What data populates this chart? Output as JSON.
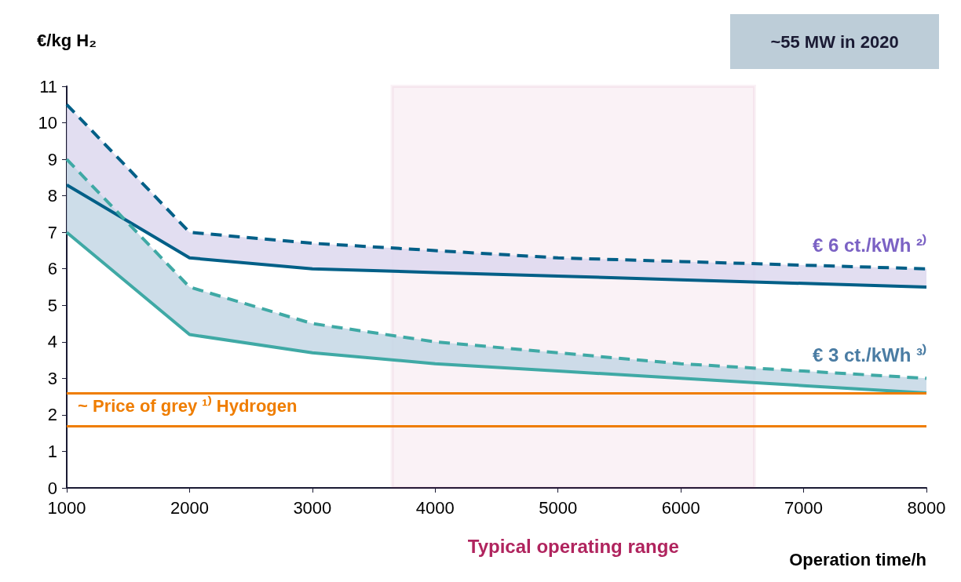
{
  "chart_data": {
    "type": "line",
    "ylabel": "€/kg H₂",
    "xlabel": "Operation time/h",
    "x": [
      1000,
      2000,
      3000,
      4000,
      5000,
      6000,
      7000,
      8000
    ],
    "series": [
      {
        "color": "#005f87",
        "line_style": "dashed",
        "values": [
          10.5,
          7.0,
          6.7,
          6.5,
          6.3,
          6.2,
          6.1,
          6.0
        ]
      },
      {
        "name": "€ 6 ct./kWh ²⁾",
        "color": "#005f87",
        "line_style": "solid",
        "values": [
          8.3,
          6.3,
          6.0,
          5.9,
          5.8,
          5.7,
          5.6,
          5.5
        ],
        "lower": [
          8.3,
          6.3,
          6.0,
          5.9,
          5.8,
          5.7,
          5.6,
          5.5
        ],
        "upper": [
          10.5,
          7.0,
          6.7,
          6.5,
          6.3,
          6.2,
          6.1,
          6.0
        ]
      },
      {
        "color": "#3fa9a5",
        "line_style": "dashed",
        "values": [
          9.0,
          5.5,
          4.5,
          4.0,
          3.7,
          3.4,
          3.2,
          3.0
        ]
      },
      {
        "name": "€ 3 ct./kWh ³⁾",
        "color": "#3fa9a5",
        "line_style": "solid",
        "values": [
          7.0,
          4.2,
          3.7,
          3.4,
          3.2,
          3.0,
          2.8,
          2.6
        ],
        "lower": [
          7.0,
          4.2,
          3.7,
          3.4,
          3.2,
          3.0,
          2.8,
          2.6
        ],
        "upper": [
          9.0,
          5.5,
          4.5,
          4.0,
          3.7,
          3.4,
          3.2,
          3.0
        ]
      }
    ],
    "xlim": [
      1000,
      8000
    ],
    "xticks": [
      1000,
      2000,
      3000,
      4000,
      5000,
      6000,
      7000,
      8000
    ],
    "ylim": [
      0,
      11
    ],
    "yticks": [
      0,
      1,
      2,
      3,
      4,
      5,
      6,
      7,
      8,
      9,
      10,
      11
    ],
    "grid": false,
    "legend": false,
    "marker": "none",
    "ref_lines": [
      {
        "axis": "y",
        "value": 2.6,
        "label": "~ Price of grey ¹⁾ Hydrogen",
        "color": "#ef7d00"
      },
      {
        "axis": "y",
        "value": 1.7,
        "color": "#ef7d00"
      }
    ],
    "bands": [
      {
        "axis": "x",
        "from": 3650,
        "to": 6600,
        "label": "Typical operating range",
        "color": "#b0245e"
      }
    ],
    "annotations": [
      "~55 MW in 2020"
    ]
  }
}
